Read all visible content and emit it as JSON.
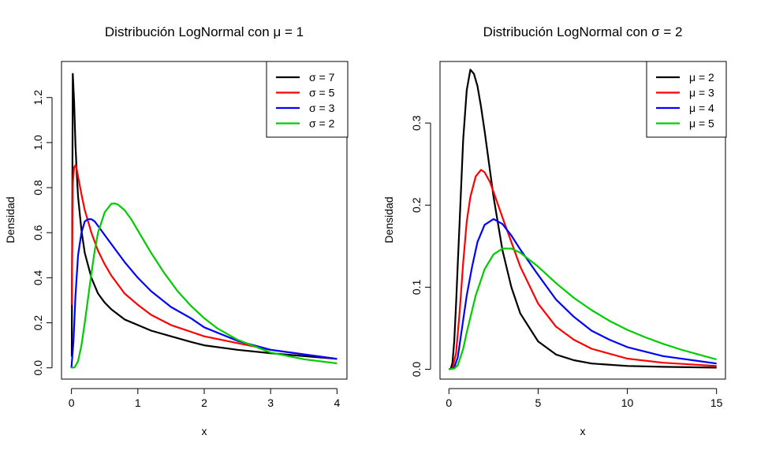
{
  "chart_data": [
    {
      "type": "line",
      "title": "Distribución LogNormal con μ = 1",
      "xlabel": "x",
      "ylabel": "Densidad",
      "xlim": [
        -0.15,
        4.15
      ],
      "ylim": [
        -0.05,
        1.36
      ],
      "xticks": [
        0,
        1,
        2,
        3,
        4
      ],
      "xtick_labels": [
        "0",
        "1",
        "2",
        "3",
        "4"
      ],
      "yticks": [
        0.0,
        0.2,
        0.4,
        0.6,
        0.8,
        1.0,
        1.2
      ],
      "ytick_labels": [
        "0.0",
        "0.2",
        "0.4",
        "0.6",
        "0.8",
        "1.0",
        "1.2"
      ],
      "legend_position": "top-right",
      "series": [
        {
          "name": "σ = 7",
          "color": "#000000",
          "x": [
            0.005,
            0.02,
            0.04,
            0.06,
            0.08,
            0.1,
            0.15,
            0.2,
            0.3,
            0.4,
            0.5,
            0.6,
            0.8,
            1.0,
            1.2,
            1.5,
            1.8,
            2.0,
            2.5,
            3.0,
            3.5,
            4.0
          ],
          "y": [
            0.05,
            1.305,
            1.18,
            0.99,
            0.86,
            0.76,
            0.61,
            0.51,
            0.4,
            0.33,
            0.29,
            0.26,
            0.215,
            0.19,
            0.165,
            0.14,
            0.115,
            0.1,
            0.08,
            0.065,
            0.052,
            0.04
          ]
        },
        {
          "name": "σ = 5",
          "color": "#ff0000",
          "x": [
            0.005,
            0.02,
            0.04,
            0.06,
            0.08,
            0.1,
            0.15,
            0.2,
            0.3,
            0.4,
            0.5,
            0.6,
            0.8,
            1.0,
            1.2,
            1.5,
            1.8,
            2.0,
            2.5,
            3.0,
            3.5,
            4.0
          ],
          "y": [
            0.28,
            0.82,
            0.89,
            0.9,
            0.88,
            0.85,
            0.77,
            0.7,
            0.6,
            0.52,
            0.46,
            0.41,
            0.33,
            0.28,
            0.235,
            0.19,
            0.16,
            0.14,
            0.11,
            0.08,
            0.06,
            0.04
          ]
        },
        {
          "name": "σ = 3",
          "color": "#0000ff",
          "x": [
            0.0,
            0.03,
            0.06,
            0.1,
            0.15,
            0.2,
            0.25,
            0.3,
            0.35,
            0.4,
            0.5,
            0.6,
            0.8,
            1.0,
            1.2,
            1.5,
            1.8,
            2.0,
            2.5,
            3.0,
            3.5,
            4.0
          ],
          "y": [
            0.0,
            0.12,
            0.32,
            0.5,
            0.6,
            0.65,
            0.66,
            0.66,
            0.65,
            0.63,
            0.59,
            0.55,
            0.47,
            0.4,
            0.34,
            0.27,
            0.22,
            0.18,
            0.12,
            0.08,
            0.06,
            0.04
          ]
        },
        {
          "name": "σ = 2",
          "color": "#00cc00",
          "x": [
            0.0,
            0.05,
            0.1,
            0.15,
            0.2,
            0.25,
            0.3,
            0.35,
            0.4,
            0.5,
            0.6,
            0.65,
            0.7,
            0.8,
            0.9,
            1.0,
            1.2,
            1.4,
            1.6,
            1.8,
            2.0,
            2.2,
            2.5,
            3.0,
            3.5,
            4.0
          ],
          "y": [
            0.0,
            0.003,
            0.03,
            0.1,
            0.2,
            0.31,
            0.42,
            0.52,
            0.6,
            0.69,
            0.728,
            0.73,
            0.725,
            0.7,
            0.66,
            0.61,
            0.51,
            0.42,
            0.34,
            0.275,
            0.22,
            0.175,
            0.125,
            0.068,
            0.038,
            0.02
          ]
        }
      ]
    },
    {
      "type": "line",
      "title": "Distribución LogNormal con σ = 2",
      "xlabel": "x",
      "ylabel": "Densidad",
      "xlim": [
        -0.5,
        15.5
      ],
      "ylim": [
        -0.012,
        0.375
      ],
      "xticks": [
        0,
        5,
        10,
        15
      ],
      "xtick_labels": [
        "0",
        "5",
        "10",
        "15"
      ],
      "yticks": [
        0.0,
        0.1,
        0.2,
        0.3
      ],
      "ytick_labels": [
        "0.0",
        "0.1",
        "0.2",
        "0.3"
      ],
      "legend_position": "top-right",
      "series": [
        {
          "name": "μ = 2",
          "color": "#000000",
          "x": [
            0.0,
            0.1,
            0.2,
            0.3,
            0.4,
            0.5,
            0.6,
            0.8,
            1.0,
            1.2,
            1.4,
            1.6,
            1.8,
            2.0,
            2.5,
            3.0,
            3.5,
            4.0,
            5.0,
            6.0,
            7.0,
            8.0,
            10.0,
            12.0,
            15.0
          ],
          "y": [
            0.0,
            0.0003,
            0.008,
            0.035,
            0.08,
            0.13,
            0.18,
            0.28,
            0.34,
            0.365,
            0.36,
            0.345,
            0.32,
            0.29,
            0.21,
            0.145,
            0.1,
            0.068,
            0.034,
            0.018,
            0.011,
            0.007,
            0.004,
            0.003,
            0.002
          ]
        },
        {
          "name": "μ = 3",
          "color": "#ff0000",
          "x": [
            0.0,
            0.2,
            0.4,
            0.6,
            0.8,
            1.0,
            1.2,
            1.5,
            1.8,
            2.0,
            2.3,
            2.6,
            3.0,
            3.5,
            4.0,
            5.0,
            6.0,
            7.0,
            8.0,
            10.0,
            12.0,
            15.0
          ],
          "y": [
            0.0,
            0.001,
            0.02,
            0.07,
            0.13,
            0.18,
            0.21,
            0.235,
            0.243,
            0.24,
            0.228,
            0.21,
            0.185,
            0.155,
            0.125,
            0.08,
            0.052,
            0.036,
            0.025,
            0.013,
            0.008,
            0.004
          ]
        },
        {
          "name": "μ = 4",
          "color": "#0000ff",
          "x": [
            0.0,
            0.3,
            0.5,
            0.8,
            1.0,
            1.3,
            1.6,
            2.0,
            2.5,
            3.0,
            3.5,
            4.0,
            5.0,
            6.0,
            7.0,
            8.0,
            9.0,
            10.0,
            12.0,
            15.0
          ],
          "y": [
            0.0,
            0.002,
            0.015,
            0.06,
            0.09,
            0.125,
            0.155,
            0.176,
            0.183,
            0.177,
            0.163,
            0.146,
            0.115,
            0.085,
            0.064,
            0.047,
            0.036,
            0.027,
            0.016,
            0.007
          ]
        },
        {
          "name": "μ = 5",
          "color": "#00cc00",
          "x": [
            0.0,
            0.3,
            0.5,
            0.8,
            1.0,
            1.5,
            2.0,
            2.5,
            3.0,
            3.5,
            4.0,
            5.0,
            6.0,
            7.0,
            8.0,
            9.0,
            10.0,
            11.0,
            12.0,
            13.0,
            14.0,
            15.0
          ],
          "y": [
            0.0,
            0.001,
            0.005,
            0.025,
            0.045,
            0.09,
            0.122,
            0.14,
            0.147,
            0.147,
            0.142,
            0.125,
            0.105,
            0.087,
            0.072,
            0.059,
            0.048,
            0.039,
            0.031,
            0.024,
            0.018,
            0.012
          ]
        }
      ]
    }
  ]
}
